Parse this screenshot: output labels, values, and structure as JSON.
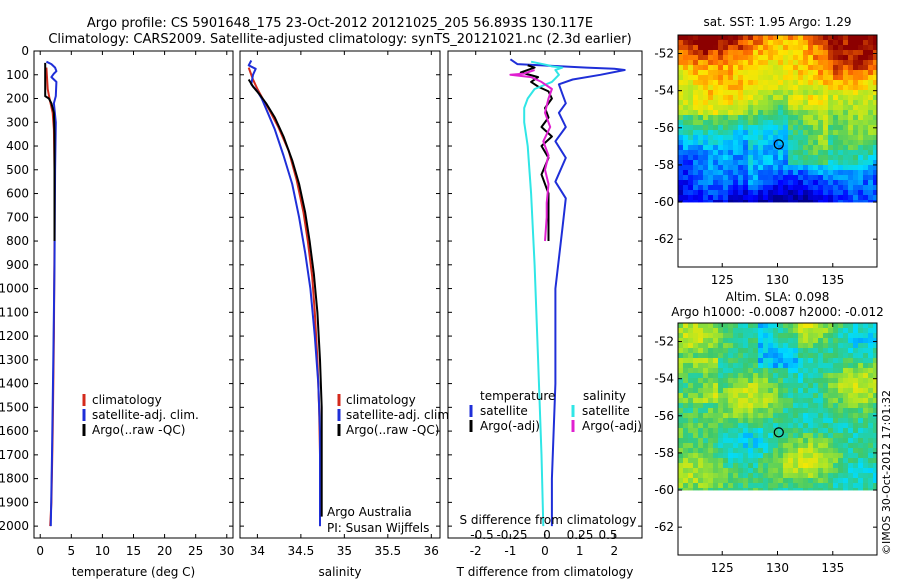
{
  "header": {
    "line1": "Argo profile: CS 5901648_175 23-Oct-2012 20121025_205 56.893S 130.117E",
    "line2": "Climatology: CARS2009. Satellite-adjusted climatology: synTS_20121021.nc (2.3d earlier)"
  },
  "colors": {
    "climatology": "#d42a1c",
    "satellite": "#1f2fd8",
    "argo": "#000000",
    "s_satellite": "#30e6e6",
    "s_argo": "#e020d0"
  },
  "chart_data": [
    {
      "type": "line",
      "panel": "temperature",
      "xlabel": "temperature (deg C)",
      "xlim": [
        -1,
        31
      ],
      "xticks": [
        0,
        5,
        10,
        15,
        20,
        25,
        30
      ],
      "ylim": [
        0,
        2050
      ],
      "yticks": [
        0,
        100,
        200,
        300,
        400,
        500,
        600,
        700,
        800,
        900,
        1000,
        1100,
        1200,
        1300,
        1400,
        1500,
        1600,
        1700,
        1800,
        1900,
        2000
      ],
      "legend": [
        "climatology",
        "satellite-adj. clim.",
        "Argo(..raw -QC)"
      ],
      "series": [
        {
          "name": "climatology",
          "color_key": "climatology",
          "points": [
            [
              1.0,
              70
            ],
            [
              1.2,
              160
            ],
            [
              1.5,
              200
            ],
            [
              2.0,
              260
            ],
            [
              2.2,
              330
            ],
            [
              2.3,
              500
            ],
            [
              2.3,
              800
            ],
            [
              2.2,
              1200
            ],
            [
              2.0,
              1600
            ],
            [
              1.8,
              1900
            ],
            [
              1.6,
              2000
            ]
          ]
        },
        {
          "name": "satellite-adj. clim.",
          "color_key": "satellite",
          "points": [
            [
              1.0,
              45
            ],
            [
              1.8,
              55
            ],
            [
              2.4,
              70
            ],
            [
              2.6,
              85
            ],
            [
              2.2,
              95
            ],
            [
              1.8,
              110
            ],
            [
              2.6,
              130
            ],
            [
              2.5,
              190
            ],
            [
              2.2,
              220
            ],
            [
              2.5,
              300
            ],
            [
              2.4,
              500
            ],
            [
              2.3,
              900
            ],
            [
              2.1,
              1300
            ],
            [
              1.9,
              1700
            ],
            [
              1.7,
              2000
            ]
          ]
        },
        {
          "name": "Argo(..raw -QC)",
          "color_key": "argo",
          "points": [
            [
              0.8,
              50
            ],
            [
              0.8,
              190
            ],
            [
              1.4,
              200
            ],
            [
              1.8,
              220
            ],
            [
              2.2,
              260
            ],
            [
              2.3,
              350
            ],
            [
              2.3,
              600
            ],
            [
              2.3,
              800
            ]
          ]
        }
      ]
    },
    {
      "type": "line",
      "panel": "salinity",
      "xlabel": "salinity",
      "xlim": [
        33.8,
        36.1
      ],
      "xticks": [
        34,
        34.5,
        35,
        35.5,
        36
      ],
      "ylim": [
        0,
        2050
      ],
      "legend": [
        "climatology",
        "satellite-adj. clim.",
        "Argo(..raw -QC)"
      ],
      "annotation": [
        "Argo Australia",
        "PI: Susan Wijffels"
      ],
      "series": [
        {
          "name": "climatology",
          "color_key": "climatology",
          "points": [
            [
              33.9,
              70
            ],
            [
              33.95,
              120
            ],
            [
              34.0,
              160
            ],
            [
              34.06,
              200
            ],
            [
              34.14,
              250
            ],
            [
              34.24,
              320
            ],
            [
              34.36,
              420
            ],
            [
              34.45,
              540
            ],
            [
              34.53,
              680
            ],
            [
              34.58,
              800
            ],
            [
              34.63,
              950
            ],
            [
              34.66,
              1100
            ],
            [
              34.69,
              1300
            ],
            [
              34.71,
              1500
            ],
            [
              34.72,
              1700
            ],
            [
              34.72,
              2000
            ]
          ]
        },
        {
          "name": "satellite-adj. clim.",
          "color_key": "satellite",
          "points": [
            [
              33.93,
              40
            ],
            [
              33.9,
              60
            ],
            [
              33.98,
              75
            ],
            [
              33.95,
              100
            ],
            [
              33.93,
              140
            ],
            [
              34.0,
              170
            ],
            [
              34.05,
              200
            ],
            [
              34.12,
              260
            ],
            [
              34.2,
              330
            ],
            [
              34.3,
              440
            ],
            [
              34.4,
              560
            ],
            [
              34.48,
              700
            ],
            [
              34.55,
              850
            ],
            [
              34.61,
              1000
            ],
            [
              34.66,
              1200
            ],
            [
              34.7,
              1400
            ],
            [
              34.72,
              1600
            ],
            [
              34.72,
              2000
            ]
          ]
        },
        {
          "name": "Argo(..raw -QC)",
          "color_key": "argo",
          "points": [
            [
              33.9,
              120
            ],
            [
              33.95,
              150
            ],
            [
              34.02,
              180
            ],
            [
              34.1,
              220
            ],
            [
              34.2,
              280
            ],
            [
              34.3,
              360
            ],
            [
              34.4,
              460
            ],
            [
              34.48,
              560
            ],
            [
              34.55,
              680
            ],
            [
              34.6,
              800
            ],
            [
              34.65,
              940
            ],
            [
              34.69,
              1100
            ],
            [
              34.72,
              1300
            ],
            [
              34.74,
              1500
            ],
            [
              34.74,
              1700
            ],
            [
              34.74,
              1960
            ]
          ]
        }
      ]
    },
    {
      "type": "line",
      "panel": "difference",
      "xlabel": "T difference from climatology",
      "xlabel_top": "S difference from climatology",
      "xlim": [
        -2.8,
        2.8
      ],
      "xticks": [
        -2,
        -1,
        0,
        1,
        2
      ],
      "xticks_top": [
        "-0.5",
        "-0.25",
        "0",
        "0.25",
        "0.5"
      ],
      "ylim": [
        0,
        2050
      ],
      "legend": {
        "temperature_title": "temperature",
        "salinity_title": "salinity",
        "items": [
          "satellite",
          "Argo(-adj)",
          "satellite",
          "Argo(-adj)"
        ]
      },
      "series": [
        {
          "name": "satellite",
          "group": "temperature",
          "color_key": "satellite",
          "points": [
            [
              -1.0,
              35
            ],
            [
              -0.8,
              55
            ],
            [
              0.5,
              65
            ],
            [
              1.2,
              70
            ],
            [
              2.0,
              75
            ],
            [
              2.3,
              80
            ],
            [
              1.6,
              100
            ],
            [
              0.8,
              120
            ],
            [
              0.4,
              140
            ],
            [
              0.5,
              180
            ],
            [
              0.6,
              220
            ],
            [
              0.4,
              260
            ],
            [
              0.6,
              320
            ],
            [
              0.3,
              380
            ],
            [
              0.6,
              450
            ],
            [
              0.3,
              550
            ],
            [
              0.6,
              620
            ],
            [
              0.5,
              750
            ],
            [
              0.3,
              1000
            ],
            [
              0.3,
              1400
            ],
            [
              0.2,
              1800
            ],
            [
              0.2,
              2000
            ]
          ]
        },
        {
          "name": "Argo(-adj)",
          "group": "temperature",
          "color_key": "argo",
          "points": [
            [
              -0.5,
              60
            ],
            [
              -0.3,
              70
            ],
            [
              -0.7,
              90
            ],
            [
              -0.2,
              110
            ],
            [
              -0.4,
              130
            ],
            [
              -0.2,
              150
            ],
            [
              0.1,
              170
            ],
            [
              0.2,
              200
            ],
            [
              0.0,
              240
            ],
            [
              0.1,
              280
            ],
            [
              -0.1,
              320
            ],
            [
              0.2,
              360
            ],
            [
              -0.1,
              400
            ],
            [
              0.1,
              450
            ],
            [
              -0.1,
              520
            ],
            [
              0.1,
              600
            ],
            [
              0.1,
              800
            ]
          ]
        },
        {
          "name": "satellite",
          "group": "salinity",
          "color_key": "s_satellite",
          "points": [
            [
              -0.4,
              45
            ],
            [
              0.1,
              60
            ],
            [
              0.2,
              65
            ],
            [
              0.5,
              70
            ],
            [
              0.3,
              80
            ],
            [
              0.4,
              100
            ],
            [
              0.2,
              130
            ],
            [
              -0.3,
              160
            ],
            [
              -0.5,
              200
            ],
            [
              -0.6,
              240
            ],
            [
              -0.6,
              300
            ],
            [
              -0.5,
              400
            ],
            [
              -0.4,
              600
            ],
            [
              -0.3,
              900
            ],
            [
              -0.2,
              1300
            ],
            [
              -0.1,
              1700
            ],
            [
              -0.05,
              2000
            ]
          ]
        },
        {
          "name": "Argo(-adj)",
          "group": "salinity",
          "color_key": "s_argo",
          "points": [
            [
              -0.3,
              80
            ],
            [
              -0.6,
              95
            ],
            [
              -1.0,
              100
            ],
            [
              -0.4,
              110
            ],
            [
              -0.1,
              130
            ],
            [
              0.2,
              160
            ],
            [
              0.1,
              200
            ],
            [
              0.0,
              260
            ],
            [
              0.15,
              320
            ],
            [
              -0.05,
              380
            ],
            [
              0.1,
              440
            ],
            [
              0.0,
              500
            ],
            [
              0.1,
              560
            ],
            [
              0.05,
              640
            ],
            [
              0.05,
              700
            ],
            [
              0.0,
              800
            ]
          ]
        }
      ]
    },
    {
      "type": "heatmap",
      "panel": "sst_map",
      "title": "sat. SST: 1.95 Argo: 1.29",
      "xlim": [
        121,
        139
      ],
      "ylim": [
        -63.5,
        -51
      ],
      "data_ylim": [
        -60,
        -51
      ],
      "xticks": [
        125,
        130,
        135
      ],
      "yticks": [
        -52,
        -54,
        -56,
        -58,
        -60,
        -62
      ],
      "marker": {
        "lon": 130.117,
        "lat": -56.893
      }
    },
    {
      "type": "heatmap",
      "panel": "sla_map",
      "title": "Altim. SLA: 0.098",
      "subtitle": "Argo h1000: -0.0087 h2000: -0.012",
      "xlim": [
        121,
        139
      ],
      "ylim": [
        -63.5,
        -51
      ],
      "data_ylim": [
        -60,
        -51
      ],
      "xticks": [
        125,
        130,
        135
      ],
      "yticks": [
        -52,
        -54,
        -56,
        -58,
        -60,
        -62
      ],
      "marker": {
        "lon": 130.117,
        "lat": -56.893
      }
    }
  ],
  "footer": {
    "side_stamp": "©IMOS 30-Oct-2012 17:01:32"
  }
}
